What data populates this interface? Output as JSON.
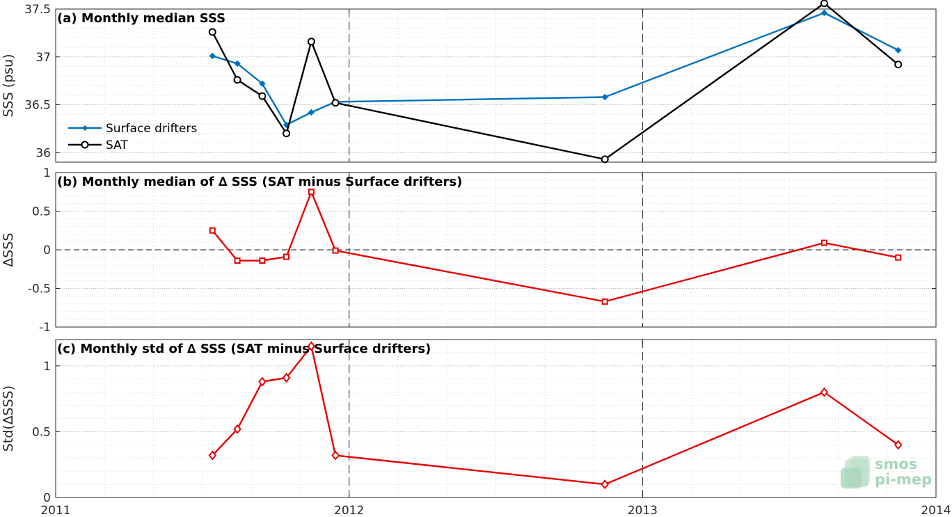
{
  "colors": {
    "drifters": "#0072BD",
    "sat": "#000000",
    "delta": "#E60000",
    "logo": "#8cc8a5"
  },
  "logo": {
    "line1": "smos",
    "line2": "pi-mep"
  },
  "chart_data": [
    {
      "type": "line",
      "title": "(a) Monthly median SSS",
      "ylabel": "SSS (psu)",
      "xlim": [
        "2011-01-01",
        "2014-01-01"
      ],
      "ylim": [
        35.9,
        37.5
      ],
      "yticks": [
        36,
        36.5,
        37,
        37.5
      ],
      "ytick_labels": [
        "36",
        "36.5",
        "37",
        "37.5"
      ],
      "x_ticks": [
        "2011-01-01",
        "2012-01-01",
        "2013-01-01",
        "2014-01-01"
      ],
      "x_tick_labels": [
        "",
        "",
        "",
        ""
      ],
      "legend_position": "left",
      "series": [
        {
          "name": "Surface drifters",
          "color": "#0072BD",
          "marker": "dot",
          "points": [
            [
              "2011-07-15",
              37.01
            ],
            [
              "2011-08-15",
              36.93
            ],
            [
              "2011-09-15",
              36.72
            ],
            [
              "2011-10-15",
              36.29
            ],
            [
              "2011-11-15",
              36.42
            ],
            [
              "2011-12-15",
              36.53
            ],
            [
              "2012-11-15",
              36.58
            ],
            [
              "2013-08-15",
              37.46
            ],
            [
              "2013-11-15",
              37.07
            ]
          ]
        },
        {
          "name": "SAT",
          "color": "#000000",
          "marker": "circle",
          "points": [
            [
              "2011-07-15",
              37.26
            ],
            [
              "2011-08-15",
              36.76
            ],
            [
              "2011-09-15",
              36.59
            ],
            [
              "2011-10-15",
              36.2
            ],
            [
              "2011-11-15",
              37.16
            ],
            [
              "2011-12-15",
              36.52
            ],
            [
              "2012-11-15",
              35.93
            ],
            [
              "2013-08-15",
              37.56
            ],
            [
              "2013-11-15",
              36.92
            ]
          ]
        }
      ]
    },
    {
      "type": "line",
      "title": "(b) Monthly median of ∆ SSS (SAT minus Surface drifters)",
      "ylabel": "∆SSS",
      "xlim": [
        "2011-01-01",
        "2014-01-01"
      ],
      "ylim": [
        -1,
        1
      ],
      "yticks": [
        -1,
        -0.5,
        0,
        0.5,
        1
      ],
      "ytick_labels": [
        "-1",
        "-0.5",
        "0",
        "0.5",
        "1"
      ],
      "x_ticks": [
        "2011-01-01",
        "2012-01-01",
        "2013-01-01",
        "2014-01-01"
      ],
      "x_tick_labels": [
        "",
        "",
        "",
        ""
      ],
      "zero_line": true,
      "series": [
        {
          "color": "#E60000",
          "marker": "square",
          "points": [
            [
              "2011-07-15",
              0.25
            ],
            [
              "2011-08-15",
              -0.14
            ],
            [
              "2011-09-15",
              -0.14
            ],
            [
              "2011-10-15",
              -0.09
            ],
            [
              "2011-11-15",
              0.75
            ],
            [
              "2011-12-15",
              -0.01
            ],
            [
              "2012-11-15",
              -0.67
            ],
            [
              "2013-08-15",
              0.09
            ],
            [
              "2013-11-15",
              -0.1
            ]
          ]
        }
      ]
    },
    {
      "type": "line",
      "title": "(c) Monthly std of ∆ SSS (SAT minus Surface drifters)",
      "ylabel": "Std(∆SSS)",
      "xlim": [
        "2011-01-01",
        "2014-01-01"
      ],
      "ylim": [
        0,
        1.2
      ],
      "yticks": [
        0,
        0.5,
        1
      ],
      "ytick_labels": [
        "0",
        "0.5",
        "1"
      ],
      "x_ticks": [
        "2011-01-01",
        "2012-01-01",
        "2013-01-01",
        "2014-01-01"
      ],
      "x_tick_labels": [
        "2011",
        "2012",
        "2013",
        "2014"
      ],
      "series": [
        {
          "color": "#E60000",
          "marker": "diamond",
          "points": [
            [
              "2011-07-15",
              0.32
            ],
            [
              "2011-08-15",
              0.52
            ],
            [
              "2011-09-15",
              0.88
            ],
            [
              "2011-10-15",
              0.91
            ],
            [
              "2011-11-15",
              1.15
            ],
            [
              "2011-12-15",
              0.32
            ],
            [
              "2012-11-15",
              0.1
            ],
            [
              "2013-08-15",
              0.8
            ],
            [
              "2013-11-15",
              0.4
            ]
          ]
        }
      ]
    }
  ]
}
